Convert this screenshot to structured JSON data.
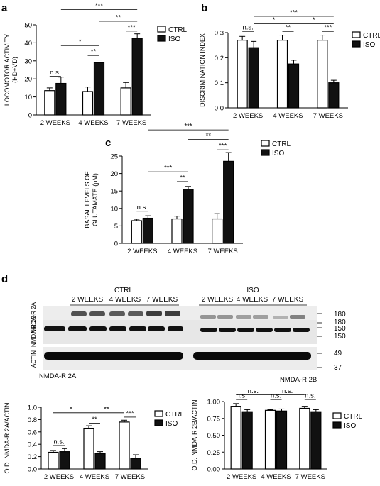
{
  "panels": {
    "a": "a",
    "b": "b",
    "c": "c",
    "d": "d"
  },
  "legend": {
    "ctrl": "CTRL",
    "iso": "ISO"
  },
  "colors": {
    "ctrl": "#ffffff",
    "iso": "#111111",
    "axis": "#000000"
  },
  "chart_data": [
    {
      "panel": "a",
      "type": "bar",
      "categories": [
        "2 WEEKS",
        "4 WEEKS",
        "7 WEEKS"
      ],
      "series": [
        {
          "name": "CTRL",
          "values": [
            13.5,
            13,
            15
          ],
          "errors": [
            1.5,
            2.5,
            3.0
          ]
        },
        {
          "name": "ISO",
          "values": [
            17.5,
            29,
            42.5
          ],
          "errors": [
            3.5,
            1.5,
            2.5
          ]
        }
      ],
      "ylabel": "LOCOMOTOR ACTIVITY",
      "ylabel2": "(HD+VD)",
      "ylim": [
        0,
        50
      ],
      "yticks": [
        0,
        10,
        20,
        30,
        40,
        50
      ],
      "yticklabels": [
        "0",
        "10",
        "20",
        "30",
        "40",
        "50"
      ],
      "annotations": [
        {
          "label": "n.s.",
          "from": [
            0,
            0
          ],
          "to": [
            0,
            1
          ],
          "y": 21.5
        },
        {
          "label": "**",
          "from": [
            1,
            0
          ],
          "to": [
            1,
            1
          ],
          "y": 33
        },
        {
          "label": "*",
          "from": [
            0,
            1
          ],
          "to": [
            1,
            1
          ],
          "y": 38.5
        },
        {
          "label": "***",
          "from": [
            2,
            0
          ],
          "to": [
            2,
            1
          ],
          "y": 46.5
        },
        {
          "label": "**",
          "from": [
            1,
            1
          ],
          "to": [
            2,
            1
          ],
          "y": 52
        },
        {
          "label": "***",
          "from": [
            0,
            1
          ],
          "to": [
            2,
            1
          ],
          "y": 58.5
        }
      ]
    },
    {
      "panel": "b",
      "type": "bar",
      "categories": [
        "2 WEEKS",
        "4 WEEKS",
        "7 WEEKS"
      ],
      "series": [
        {
          "name": "CTRL",
          "values": [
            0.27,
            0.27,
            0.27
          ],
          "errors": [
            0.015,
            0.02,
            0.02
          ]
        },
        {
          "name": "ISO",
          "values": [
            0.24,
            0.175,
            0.1
          ],
          "errors": [
            0.025,
            0.015,
            0.01
          ]
        }
      ],
      "ylabel": "DISCRIMINATION INDEX",
      "ylim": [
        0,
        0.3
      ],
      "yticks": [
        0,
        0.1,
        0.2,
        0.3
      ],
      "yticklabels": [
        "0.0",
        "0.1",
        "0.2",
        "0.3"
      ],
      "annotations": [
        {
          "label": "n.s.",
          "from": [
            0,
            0
          ],
          "to": [
            0,
            1
          ],
          "y": 0.305
        },
        {
          "label": "**",
          "from": [
            1,
            0
          ],
          "to": [
            1,
            1
          ],
          "y": 0.305
        },
        {
          "label": "***",
          "from": [
            2,
            0
          ],
          "to": [
            2,
            1
          ],
          "y": 0.305
        },
        {
          "label": "*",
          "from": [
            0,
            1
          ],
          "to": [
            1,
            1
          ],
          "y": 0.335
        },
        {
          "label": "*",
          "from": [
            1,
            1
          ],
          "to": [
            2,
            1
          ],
          "y": 0.335
        },
        {
          "label": "***",
          "from": [
            0,
            1
          ],
          "to": [
            2,
            1
          ],
          "y": 0.365
        }
      ]
    },
    {
      "panel": "c",
      "type": "bar",
      "categories": [
        "2 WEEKS",
        "4 WEEKS",
        "7 WEEKS"
      ],
      "series": [
        {
          "name": "CTRL",
          "values": [
            6.5,
            7,
            7
          ],
          "errors": [
            0.4,
            0.8,
            1.5
          ]
        },
        {
          "name": "ISO",
          "values": [
            7.2,
            15.5,
            23.5
          ],
          "errors": [
            0.7,
            0.8,
            2.5
          ]
        }
      ],
      "ylabel": "BASAL LEVELS OF",
      "ylabel2": "GLUTAMATE (μM)",
      "ylim": [
        0,
        25
      ],
      "yticks": [
        0,
        5,
        10,
        15,
        20,
        25
      ],
      "yticklabels": [
        "0",
        "5",
        "10",
        "15",
        "20",
        "25"
      ],
      "annotations": [
        {
          "label": "n.s.",
          "from": [
            0,
            0
          ],
          "to": [
            0,
            1
          ],
          "y": 9.2
        },
        {
          "label": "**",
          "from": [
            1,
            0
          ],
          "to": [
            1,
            1
          ],
          "y": 17.7
        },
        {
          "label": "***",
          "from": [
            0,
            1
          ],
          "to": [
            1,
            1
          ],
          "y": 20.5
        },
        {
          "label": "***",
          "from": [
            2,
            0
          ],
          "to": [
            2,
            1
          ],
          "y": 26.8
        },
        {
          "label": "**",
          "from": [
            1,
            1
          ],
          "to": [
            2,
            1
          ],
          "y": 29.8
        },
        {
          "label": "***",
          "from": [
            0,
            1
          ],
          "to": [
            2,
            1
          ],
          "y": 32.5
        }
      ]
    },
    {
      "panel": "d1",
      "type": "bar",
      "title": "NMDA-R 2A",
      "categories": [
        "2 WEEKS",
        "4 WEEKS",
        "7 WEEKS"
      ],
      "series": [
        {
          "name": "CTRL",
          "values": [
            0.27,
            0.66,
            0.76
          ],
          "errors": [
            0.03,
            0.04,
            0.03
          ]
        },
        {
          "name": "ISO",
          "values": [
            0.28,
            0.25,
            0.17
          ],
          "errors": [
            0.05,
            0.03,
            0.06
          ]
        }
      ],
      "ylabel": "O.D. NMDA-R 2A/ACTIN",
      "ylim": [
        0,
        1.0
      ],
      "yticks": [
        0,
        0.2,
        0.4,
        0.6,
        0.8,
        1.0
      ],
      "yticklabels": [
        "0.0",
        "0.2",
        "0.4",
        "0.6",
        "0.8",
        "1.0"
      ],
      "annotations": [
        {
          "label": "n.s.",
          "from": [
            0,
            0
          ],
          "to": [
            0,
            1
          ],
          "y": 0.38
        },
        {
          "label": "**",
          "from": [
            1,
            0
          ],
          "to": [
            1,
            1
          ],
          "y": 0.74
        },
        {
          "label": "***",
          "from": [
            2,
            0
          ],
          "to": [
            2,
            1
          ],
          "y": 0.84
        },
        {
          "label": "*",
          "from": [
            0,
            0
          ],
          "to": [
            1,
            0
          ],
          "y": 0.91
        },
        {
          "label": "**",
          "from": [
            1,
            0
          ],
          "to": [
            2,
            0
          ],
          "y": 0.91
        }
      ]
    },
    {
      "panel": "d2",
      "type": "bar",
      "title": "NMDA-R 2B",
      "categories": [
        "2 WEEKS",
        "4 WEEKS",
        "7 WEEKS"
      ],
      "series": [
        {
          "name": "CTRL",
          "values": [
            0.93,
            0.87,
            0.9
          ],
          "errors": [
            0.04,
            0.01,
            0.03
          ]
        },
        {
          "name": "ISO",
          "values": [
            0.85,
            0.86,
            0.85
          ],
          "errors": [
            0.03,
            0.03,
            0.03
          ]
        }
      ],
      "ylabel": "O.D. NMDA-R 2B/ACTIN",
      "ylim": [
        0,
        1.0
      ],
      "yticks": [
        0,
        0.25,
        0.5,
        0.75,
        1.0
      ],
      "yticklabels": [
        "0.00",
        "0.25",
        "0.50",
        "0.75",
        "1.00"
      ],
      "annotations": [
        {
          "label": "n.s.",
          "from": [
            0,
            0
          ],
          "to": [
            0,
            1
          ],
          "y": 1.03
        },
        {
          "label": "n.s.",
          "from": [
            1,
            0
          ],
          "to": [
            1,
            1
          ],
          "y": 1.03
        },
        {
          "label": "n.s.",
          "from": [
            2,
            0
          ],
          "to": [
            2,
            1
          ],
          "y": 1.03
        },
        {
          "label": "n.s.",
          "from": [
            0,
            0
          ],
          "to": [
            1,
            0
          ],
          "y": 1.1
        },
        {
          "label": "n.s.",
          "from": [
            1,
            0
          ],
          "to": [
            2,
            0
          ],
          "y": 1.1
        }
      ]
    }
  ],
  "blot": {
    "group_ctrl": "CTRL",
    "group_iso": "ISO",
    "week_labels": [
      "2 WEEKS",
      "4 WEEKS",
      "7 WEEKS"
    ],
    "rows": [
      {
        "label": "NMDA-R 2A",
        "markers": [
          "180",
          "150"
        ]
      },
      {
        "label": "NMDA-R 2B",
        "markers": [
          "180",
          "150"
        ]
      },
      {
        "label": "ACTIN",
        "markers": [
          "49",
          "37"
        ]
      }
    ]
  }
}
